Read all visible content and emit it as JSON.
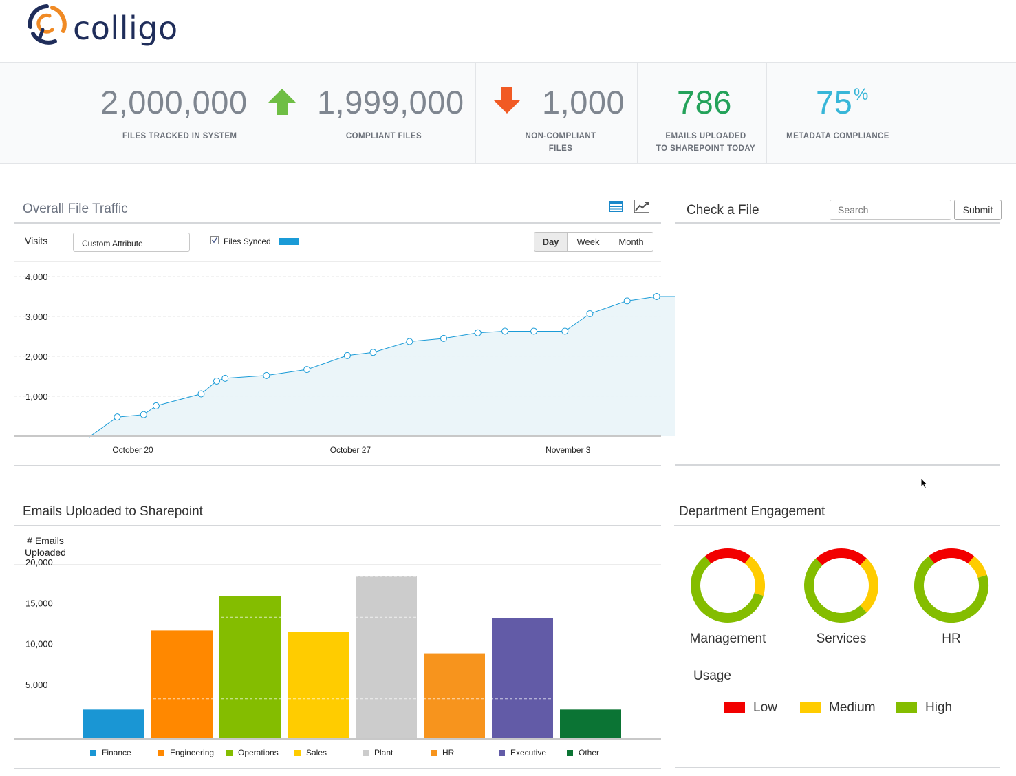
{
  "brand": {
    "name": "colligo",
    "navy": "#1f2d5a",
    "orange": "#f08a24"
  },
  "stats": [
    {
      "value": "2,000,000",
      "label": "FILES TRACKED IN SYSTEM",
      "color": "#7f8690"
    },
    {
      "value": "1,999,000",
      "label": "COMPLIANT FILES",
      "color": "#7f8690",
      "arrow": "up-arrow-icon",
      "arrow_color": "#6fbe44"
    },
    {
      "value": "1,000",
      "label_line1": "NON-COMPLIANT",
      "label_line2": "FILES",
      "color": "#7f8690",
      "arrow": "down-arrow-icon",
      "arrow_color": "#f15a24"
    },
    {
      "value": "786",
      "label_line1": "EMAILS UPLOADED",
      "label_line2": "TO SHAREPOINT TODAY",
      "color": "#24a25a"
    },
    {
      "value": "75",
      "suffix": "%",
      "label": "METADATA COMPLIANCE",
      "color": "#38b6d8"
    }
  ],
  "traffic": {
    "title": "Overall File Traffic",
    "visits_label": "Visits",
    "attribute_value": "Custom Attribute",
    "series_checkbox_label": "Files Synced",
    "series_checked": true,
    "series_color": "#1a9bd7",
    "range_buttons": [
      "Day",
      "Week",
      "Month"
    ],
    "active_range": "Day"
  },
  "check_file": {
    "title": "Check a File",
    "search_placeholder": "Search",
    "submit_label": "Submit"
  },
  "emails": {
    "title": "Emails Uploaded to Sharepoint"
  },
  "engagement": {
    "title": "Department Engagement",
    "usage_title": "Usage",
    "departments": [
      {
        "name": "Management",
        "low": 0.21,
        "medium": 0.19,
        "high": 0.6
      },
      {
        "name": "Services",
        "low": 0.24,
        "medium": 0.26,
        "high": 0.5
      },
      {
        "name": "HR",
        "low": 0.21,
        "medium": 0.1,
        "high": 0.69
      }
    ],
    "usage_legend": [
      {
        "label": "Low",
        "color": "#f20000"
      },
      {
        "label": "Medium",
        "color": "#ffcc00"
      },
      {
        "label": "High",
        "color": "#84bd00"
      }
    ]
  },
  "chart_data": [
    {
      "type": "area",
      "ylabel": "Visits",
      "ylim": [
        0,
        4000
      ],
      "yticks": [
        "1,000",
        "2,000",
        "3,000",
        "4,000"
      ],
      "xticks": [
        "October 20",
        "October 27",
        "November 3"
      ],
      "grid": true,
      "series": [
        {
          "name": "Files Synced",
          "color": "#1a9bd7",
          "x": [
            "Oct 16.0",
            "Oct 17.0",
            "Oct 18.4",
            "Oct 19.2",
            "Oct 21.2",
            "Oct 21.7",
            "Oct 22.0",
            "Oct 23.3",
            "Oct 24.6",
            "Oct 25.9",
            "Oct 26.7",
            "Oct 27.9",
            "Oct 29.0",
            "Oct 30.1",
            "Oct 31.0",
            "Nov 1.0",
            "Nov 2.0",
            "Nov 2.8",
            "Nov 4.0",
            "Nov 4.9",
            "Nov 5.7"
          ],
          "xpos": [
            -1.4,
            -0.5,
            0.35,
            0.75,
            2.2,
            2.7,
            2.97,
            4.3,
            5.6,
            6.9,
            7.73,
            8.9,
            10.0,
            11.1,
            11.97,
            12.9,
            13.9,
            14.7,
            15.9,
            16.85,
            17.8
          ],
          "values": [
            -20,
            480,
            540,
            760,
            1060,
            1380,
            1450,
            1520,
            1670,
            2020,
            2100,
            2370,
            2450,
            2590,
            2630,
            2630,
            2630,
            3070,
            3390,
            3500,
            3500
          ]
        }
      ]
    },
    {
      "type": "bar",
      "title": "",
      "ylabel": "# Emails Uploaded",
      "ylim": [
        0,
        20000
      ],
      "yticks": [
        "5,000",
        "10,000",
        "15,000",
        "20,000"
      ],
      "categories": [
        "Finance",
        "Engineering",
        "Operations",
        "Sales",
        "Plant",
        "HR",
        "Executive",
        "Other"
      ],
      "values": [
        3600,
        13300,
        17500,
        13100,
        20000,
        10500,
        14800,
        3600
      ],
      "colors": [
        "#1a96d4",
        "#ff8800",
        "#84bd00",
        "#ffcc00",
        "#cccccc",
        "#f7941d",
        "#625ba7",
        "#0b7434"
      ]
    }
  ]
}
